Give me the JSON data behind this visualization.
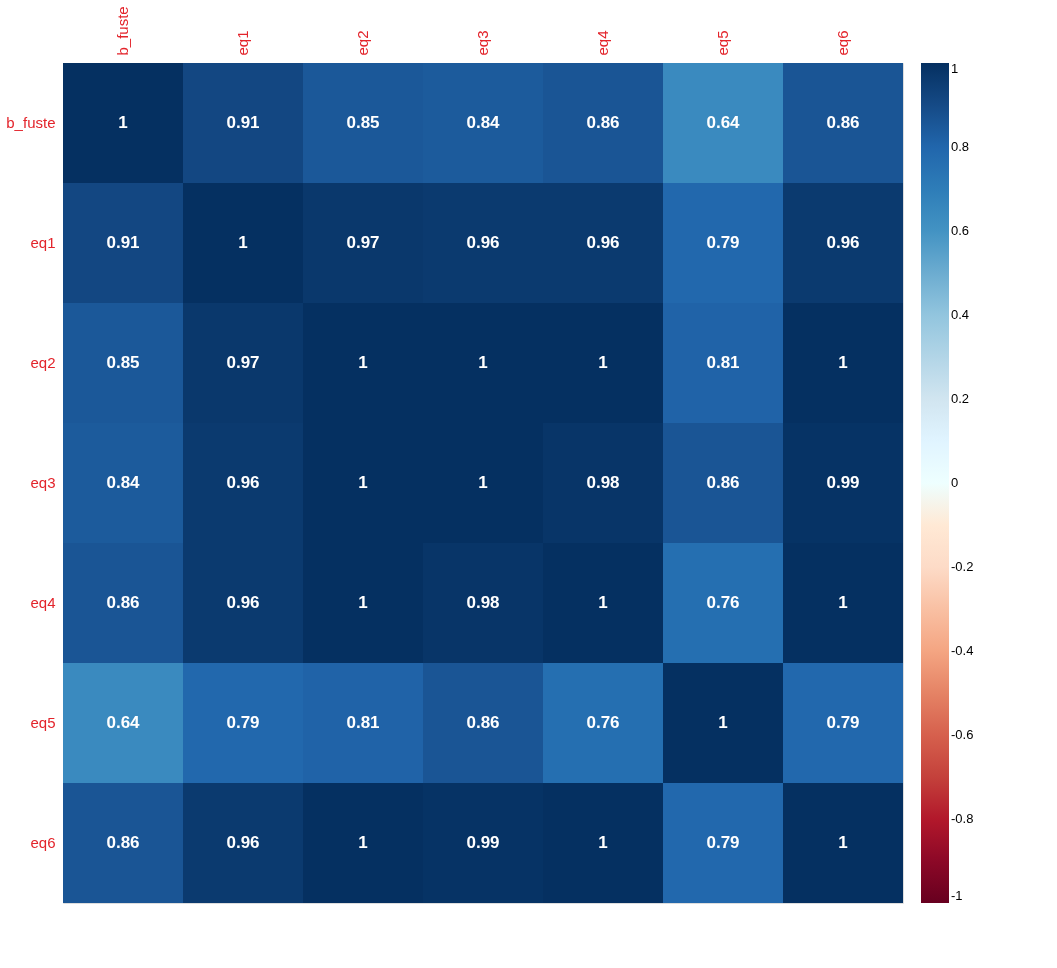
{
  "chart_data": {
    "type": "heatmap",
    "categories": [
      "b_fuste",
      "eq1",
      "eq2",
      "eq3",
      "eq4",
      "eq5",
      "eq6"
    ],
    "y_categories": [
      "b_fuste",
      "eq1",
      "eq2",
      "eq3",
      "eq4",
      "eq5",
      "eq6"
    ],
    "cells": [
      [
        1,
        0.91,
        0.85,
        0.84,
        0.86,
        0.64,
        0.86
      ],
      [
        0.91,
        1,
        0.97,
        0.96,
        0.96,
        0.79,
        0.96
      ],
      [
        0.85,
        0.97,
        1,
        1,
        1,
        0.81,
        1
      ],
      [
        0.84,
        0.96,
        1,
        1,
        0.98,
        0.86,
        0.99
      ],
      [
        0.86,
        0.96,
        1,
        0.98,
        1,
        0.76,
        1
      ],
      [
        0.64,
        0.79,
        0.81,
        0.86,
        0.76,
        1,
        0.79
      ],
      [
        0.86,
        0.96,
        1,
        0.99,
        1,
        0.79,
        1
      ]
    ],
    "clim": [
      -1,
      1
    ],
    "cticks": [
      -1,
      -0.8,
      -0.6,
      -0.4,
      -0.2,
      0,
      0.2,
      0.4,
      0.6,
      0.8,
      1
    ],
    "data_labels": true,
    "grid": false
  }
}
